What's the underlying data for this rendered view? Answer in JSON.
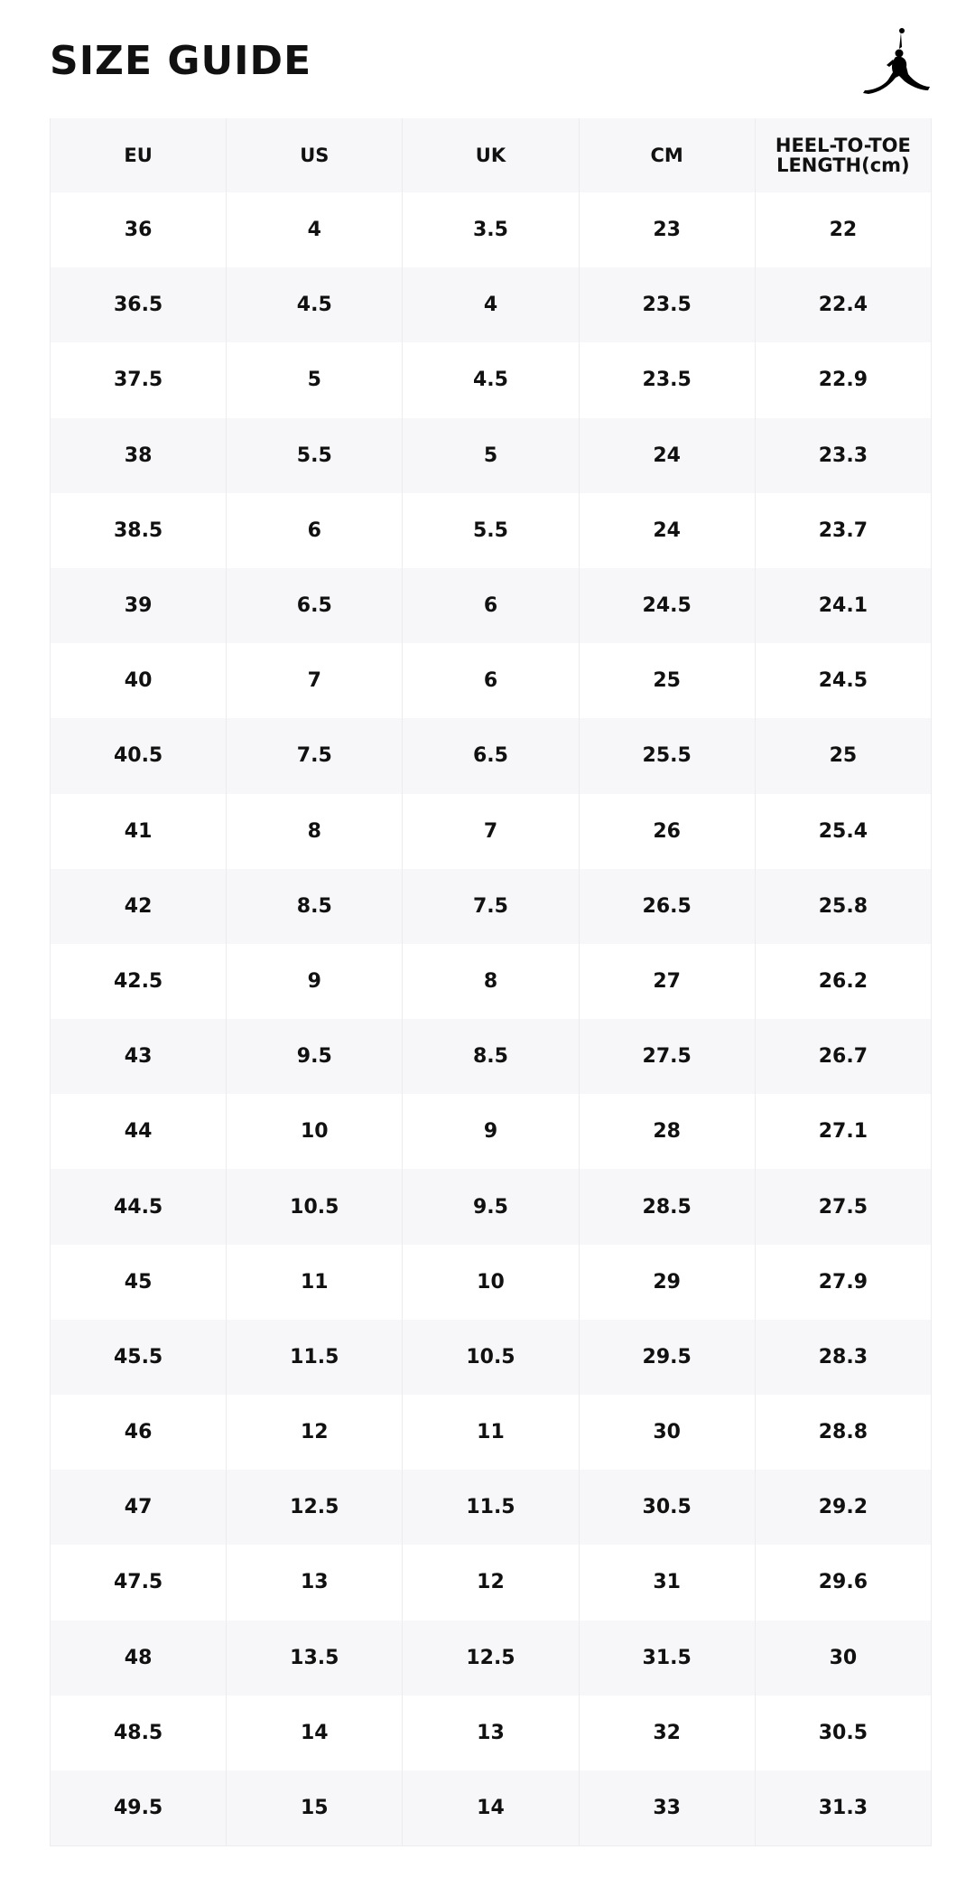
{
  "title": "SIZE GUIDE",
  "logo": {
    "icon": "jumpman-logo-icon",
    "color": "#000000"
  },
  "colors": {
    "header_bg": "#f7f7f9",
    "alt_row_bg": "#f7f7f9",
    "border": "#ececef",
    "text": "#111111"
  },
  "table": {
    "headers": [
      "EU",
      "US",
      "UK",
      "CM",
      "HEEL-TO-TOE LENGTH(cm)"
    ],
    "rows": [
      [
        "36",
        "4",
        "3.5",
        "23",
        "22"
      ],
      [
        "36.5",
        "4.5",
        "4",
        "23.5",
        "22.4"
      ],
      [
        "37.5",
        "5",
        "4.5",
        "23.5",
        "22.9"
      ],
      [
        "38",
        "5.5",
        "5",
        "24",
        "23.3"
      ],
      [
        "38.5",
        "6",
        "5.5",
        "24",
        "23.7"
      ],
      [
        "39",
        "6.5",
        "6",
        "24.5",
        "24.1"
      ],
      [
        "40",
        "7",
        "6",
        "25",
        "24.5"
      ],
      [
        "40.5",
        "7.5",
        "6.5",
        "25.5",
        "25"
      ],
      [
        "41",
        "8",
        "7",
        "26",
        "25.4"
      ],
      [
        "42",
        "8.5",
        "7.5",
        "26.5",
        "25.8"
      ],
      [
        "42.5",
        "9",
        "8",
        "27",
        "26.2"
      ],
      [
        "43",
        "9.5",
        "8.5",
        "27.5",
        "26.7"
      ],
      [
        "44",
        "10",
        "9",
        "28",
        "27.1"
      ],
      [
        "44.5",
        "10.5",
        "9.5",
        "28.5",
        "27.5"
      ],
      [
        "45",
        "11",
        "10",
        "29",
        "27.9"
      ],
      [
        "45.5",
        "11.5",
        "10.5",
        "29.5",
        "28.3"
      ],
      [
        "46",
        "12",
        "11",
        "30",
        "28.8"
      ],
      [
        "47",
        "12.5",
        "11.5",
        "30.5",
        "29.2"
      ],
      [
        "47.5",
        "13",
        "12",
        "31",
        "29.6"
      ],
      [
        "48",
        "13.5",
        "12.5",
        "31.5",
        "30"
      ],
      [
        "48.5",
        "14",
        "13",
        "32",
        "30.5"
      ],
      [
        "49.5",
        "15",
        "14",
        "33",
        "31.3"
      ]
    ]
  }
}
